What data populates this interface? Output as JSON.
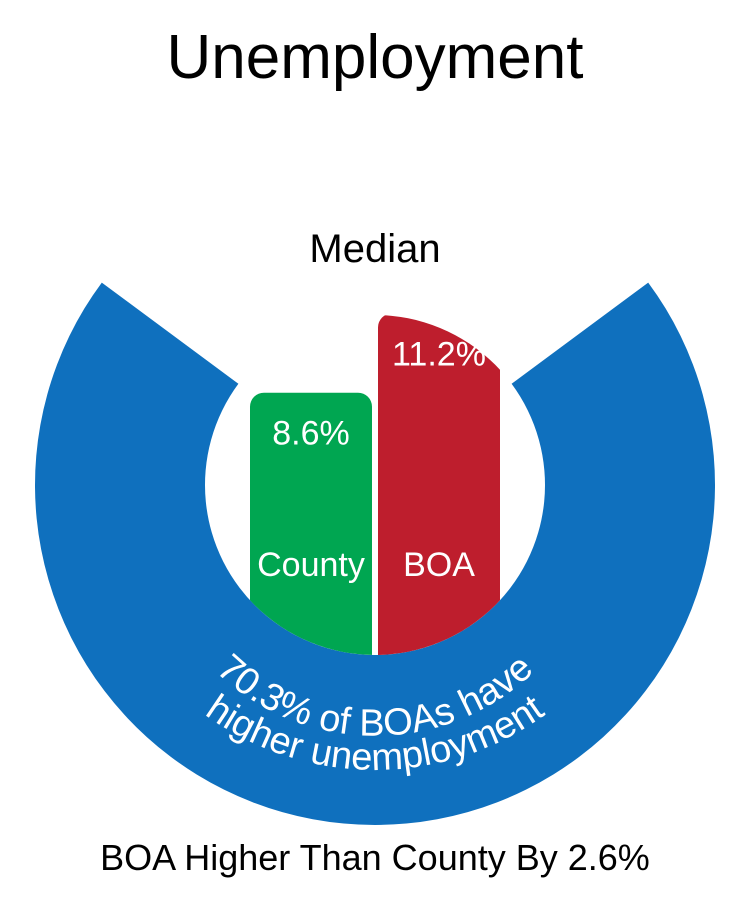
{
  "chart_data": {
    "type": "bar",
    "title": "Unemployment",
    "subtitle": "Median",
    "categories": [
      "County",
      "BOA"
    ],
    "values": [
      8.6,
      11.2
    ],
    "value_labels": [
      "8.6%",
      "11.2%"
    ],
    "colors": {
      "County": "#00A651",
      "BOA": "#BE1E2D",
      "ring": "#0F70BE"
    },
    "ring": {
      "value": 70.3,
      "line1": "70.3% of BOAs have",
      "line2": "higher unemployment"
    },
    "footer": "BOA Higher Than County By 2.6%"
  }
}
